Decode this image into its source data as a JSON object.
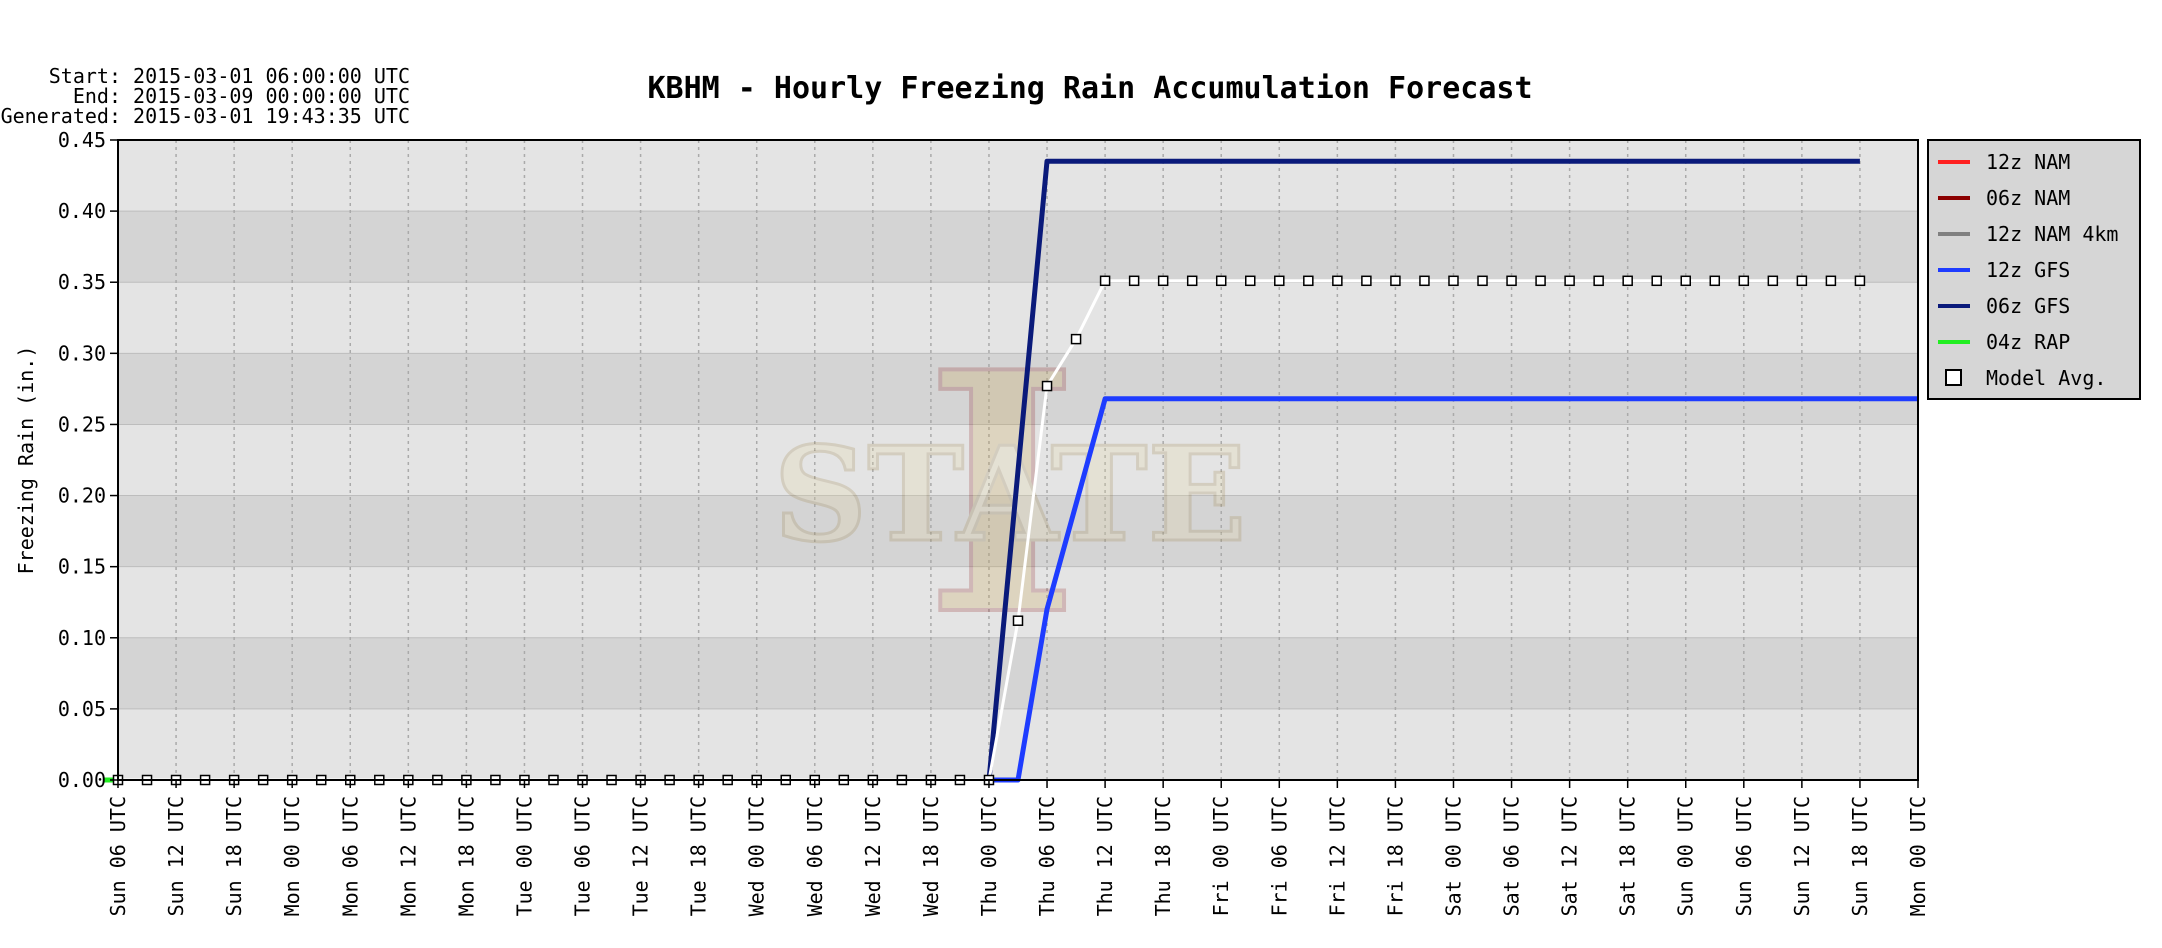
{
  "header": {
    "start": "Start: 2015-03-01 06:00:00 UTC",
    "end": "End: 2015-03-09 00:00:00 UTC",
    "generated": "Generated: 2015-03-01 19:43:35 UTC"
  },
  "chart_data": {
    "type": "line",
    "title": "KBHM - Hourly Freezing Rain Accumulation Forecast",
    "xlabel": "",
    "ylabel": "Freezing Rain (in.)",
    "ylim": [
      0,
      0.45
    ],
    "yticks": [
      "0.00",
      "0.05",
      "0.10",
      "0.15",
      "0.20",
      "0.25",
      "0.30",
      "0.35",
      "0.40",
      "0.45"
    ],
    "xlim_hours": [
      0,
      186
    ],
    "xtick_step_hours": 6,
    "xticks": [
      "Sun 06 UTC",
      "Sun 12 UTC",
      "Sun 18 UTC",
      "Mon 00 UTC",
      "Mon 06 UTC",
      "Mon 12 UTC",
      "Mon 18 UTC",
      "Tue 00 UTC",
      "Tue 06 UTC",
      "Tue 12 UTC",
      "Tue 18 UTC",
      "Wed 00 UTC",
      "Wed 06 UTC",
      "Wed 12 UTC",
      "Wed 18 UTC",
      "Thu 00 UTC",
      "Thu 06 UTC",
      "Thu 12 UTC",
      "Thu 18 UTC",
      "Fri 00 UTC",
      "Fri 06 UTC",
      "Fri 12 UTC",
      "Fri 18 UTC",
      "Sat 00 UTC",
      "Sat 06 UTC",
      "Sat 12 UTC",
      "Sat 18 UTC",
      "Sun 00 UTC",
      "Sun 06 UTC",
      "Sun 12 UTC",
      "Sun 18 UTC",
      "Mon 00 UTC"
    ],
    "grid": true,
    "legend_position": "right",
    "series": [
      {
        "name": "12z NAM",
        "color": "#ff2020",
        "points": []
      },
      {
        "name": "06z NAM",
        "color": "#8b0000",
        "points": []
      },
      {
        "name": "12z NAM 4km",
        "color": "#808080",
        "points": []
      },
      {
        "name": "12z GFS",
        "color": "#1e3cff",
        "points": [
          [
            90,
            0
          ],
          [
            93,
            0
          ],
          [
            96,
            0.12
          ],
          [
            102,
            0.268
          ],
          [
            186,
            0.268
          ]
        ]
      },
      {
        "name": "06z GFS",
        "color": "#0a1a7a",
        "points": [
          [
            90,
            0
          ],
          [
            96,
            0.435
          ],
          [
            180,
            0.435
          ]
        ]
      },
      {
        "name": "04z RAP",
        "color": "#22ee22",
        "points": [
          [
            -1.5,
            0
          ],
          [
            0,
            0
          ]
        ]
      }
    ],
    "model_avg": {
      "name": "Model Avg.",
      "points": [
        [
          0,
          0
        ],
        [
          3,
          0
        ],
        [
          6,
          0
        ],
        [
          9,
          0
        ],
        [
          12,
          0
        ],
        [
          15,
          0
        ],
        [
          18,
          0
        ],
        [
          21,
          0
        ],
        [
          24,
          0
        ],
        [
          27,
          0
        ],
        [
          30,
          0
        ],
        [
          33,
          0
        ],
        [
          36,
          0
        ],
        [
          39,
          0
        ],
        [
          42,
          0
        ],
        [
          45,
          0
        ],
        [
          48,
          0
        ],
        [
          51,
          0
        ],
        [
          54,
          0
        ],
        [
          57,
          0
        ],
        [
          60,
          0
        ],
        [
          63,
          0
        ],
        [
          66,
          0
        ],
        [
          69,
          0
        ],
        [
          72,
          0
        ],
        [
          75,
          0
        ],
        [
          78,
          0
        ],
        [
          81,
          0
        ],
        [
          84,
          0
        ],
        [
          87,
          0
        ],
        [
          90,
          0
        ],
        [
          93,
          0.112
        ],
        [
          96,
          0.277
        ],
        [
          99,
          0.31
        ],
        [
          102,
          0.351
        ],
        [
          105,
          0.351
        ],
        [
          108,
          0.351
        ],
        [
          111,
          0.351
        ],
        [
          114,
          0.351
        ],
        [
          117,
          0.351
        ],
        [
          120,
          0.351
        ],
        [
          123,
          0.351
        ],
        [
          126,
          0.351
        ],
        [
          129,
          0.351
        ],
        [
          132,
          0.351
        ],
        [
          135,
          0.351
        ],
        [
          138,
          0.351
        ],
        [
          141,
          0.351
        ],
        [
          144,
          0.351
        ],
        [
          147,
          0.351
        ],
        [
          150,
          0.351
        ],
        [
          153,
          0.351
        ],
        [
          156,
          0.351
        ],
        [
          159,
          0.351
        ],
        [
          162,
          0.351
        ],
        [
          165,
          0.351
        ],
        [
          168,
          0.351
        ],
        [
          171,
          0.351
        ],
        [
          174,
          0.351
        ],
        [
          177,
          0.351
        ],
        [
          180,
          0.351
        ]
      ]
    }
  },
  "watermark": {
    "text": "STATE",
    "letter": "I"
  }
}
